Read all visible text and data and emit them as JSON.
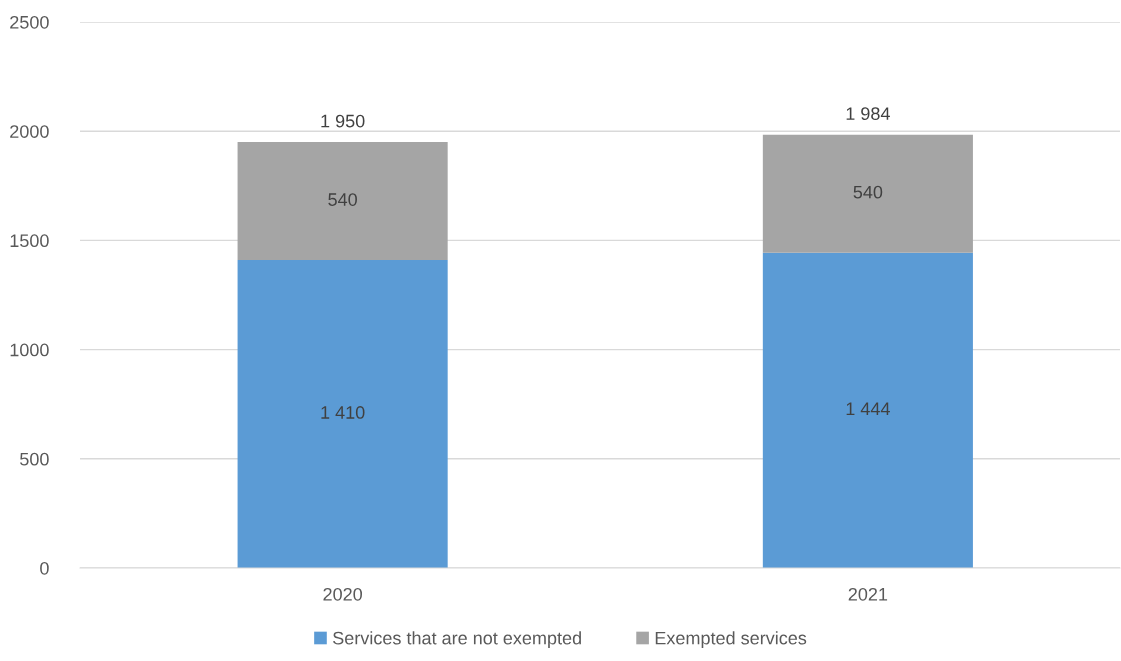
{
  "chart_data": {
    "type": "bar",
    "stacked": true,
    "categories": [
      "2020",
      "2021"
    ],
    "series": [
      {
        "name": "Services that are not exempted",
        "color": "#5b9bd5",
        "values": [
          1410,
          1444
        ],
        "value_labels": [
          "1 410",
          "1 444"
        ]
      },
      {
        "name": "Exempted services",
        "color": "#a5a5a5",
        "values": [
          540,
          540
        ],
        "value_labels": [
          "540",
          "540"
        ]
      }
    ],
    "totals": [
      "1 950",
      "1 984"
    ],
    "ylim": [
      0,
      2500
    ],
    "yticks": [
      0,
      500,
      1000,
      1500,
      2000,
      2500
    ],
    "grid": "y",
    "legend": "bottom"
  }
}
